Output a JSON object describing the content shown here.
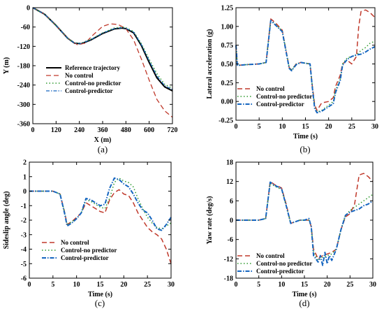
{
  "chart_data": [
    {
      "panel_label": "(a)",
      "type": "line",
      "xlabel": "X (m)",
      "ylabel": "Y (m)",
      "xlim": [
        0,
        720
      ],
      "ylim": [
        -360,
        0
      ],
      "xticks": [
        0,
        120,
        240,
        360,
        480,
        600,
        720
      ],
      "yticks": [
        0,
        -60,
        -120,
        -180,
        -240,
        -300,
        -360
      ],
      "legend_position": "lower-left",
      "series": [
        {
          "name": "Reference trajectory",
          "color": "#000000",
          "dash": "solid",
          "width": 2,
          "x": [
            0,
            60,
            120,
            180,
            215,
            250,
            300,
            360,
            420,
            460,
            480,
            520,
            560,
            600,
            640,
            680,
            720
          ],
          "y": [
            0,
            -20,
            -55,
            -95,
            -110,
            -112,
            -100,
            -80,
            -66,
            -63,
            -65,
            -78,
            -118,
            -170,
            -218,
            -246,
            -258
          ]
        },
        {
          "name": "No control",
          "color": "#c0392b",
          "dash": "7,4",
          "width": 1.3,
          "x": [
            0,
            60,
            120,
            180,
            230,
            270,
            310,
            360,
            400,
            440,
            480,
            520,
            560,
            600,
            640,
            680,
            720
          ],
          "y": [
            0,
            -20,
            -55,
            -95,
            -115,
            -110,
            -85,
            -58,
            -50,
            -52,
            -65,
            -100,
            -160,
            -225,
            -285,
            -320,
            -340
          ]
        },
        {
          "name": "Control-no predictor",
          "color": "#2e9a2e",
          "dash": "1.5,3",
          "width": 1.5,
          "x": [
            0,
            60,
            120,
            180,
            215,
            250,
            300,
            360,
            420,
            460,
            480,
            520,
            560,
            600,
            640,
            680,
            720
          ],
          "y": [
            0,
            -20,
            -55,
            -95,
            -109,
            -110,
            -98,
            -78,
            -63,
            -60,
            -62,
            -74,
            -112,
            -160,
            -205,
            -238,
            -250
          ]
        },
        {
          "name": "Control-predictor",
          "color": "#1565c0",
          "dash": "5,2,1.5,2",
          "width": 1.2,
          "x": [
            0,
            60,
            120,
            180,
            215,
            250,
            300,
            360,
            420,
            460,
            480,
            520,
            560,
            600,
            640,
            680,
            720
          ],
          "y": [
            0,
            -20,
            -55,
            -95,
            -110,
            -111,
            -99,
            -79,
            -65,
            -62,
            -64,
            -76,
            -115,
            -165,
            -212,
            -242,
            -254
          ]
        }
      ]
    },
    {
      "panel_label": "(b)",
      "type": "line",
      "xlabel": "Time (s)",
      "ylabel": "Lateral acceleration (g)",
      "xlim": [
        0,
        30
      ],
      "ylim": [
        -0.25,
        1.25
      ],
      "xticks": [
        0,
        5,
        10,
        15,
        20,
        25,
        30
      ],
      "yticks": [
        -0.25,
        0.0,
        0.25,
        0.5,
        0.75,
        1.0,
        1.25
      ],
      "ytick_labels": [
        "-0.25",
        "0.00",
        "0.25",
        "0.50",
        "0.75",
        "1.00",
        "1.25"
      ],
      "legend_position": "lower-left",
      "series": [
        {
          "name": "No control",
          "color": "#c0392b",
          "dash": "7,4",
          "width": 1.5,
          "x": [
            0,
            0.3,
            2,
            5,
            6.5,
            7.5,
            8.5,
            10,
            11.5,
            12,
            13,
            14,
            16,
            16.5,
            17,
            17.5,
            18.5,
            20,
            21,
            21.5,
            22.5,
            23,
            24,
            25,
            26,
            26.5,
            27,
            28,
            29,
            30
          ],
          "y": [
            0.75,
            0.48,
            0.49,
            0.5,
            0.52,
            1.1,
            1.05,
            0.95,
            0.45,
            0.42,
            0.5,
            0.52,
            0.5,
            0.2,
            -0.05,
            -0.12,
            -0.02,
            0.0,
            0.05,
            0.2,
            0.35,
            0.5,
            0.55,
            0.5,
            0.6,
            1.0,
            1.2,
            1.22,
            1.18,
            1.12
          ]
        },
        {
          "name": "Control-no predictor",
          "color": "#2e9a2e",
          "dash": "1.5,3",
          "width": 1.5,
          "x": [
            0,
            0.3,
            2,
            5,
            6.5,
            7.5,
            8.5,
            10,
            11.5,
            12,
            13,
            14,
            16,
            16.5,
            17,
            17.5,
            18.5,
            20,
            21,
            21.5,
            22.5,
            23,
            24,
            25,
            26,
            27,
            28,
            29,
            30
          ],
          "y": [
            0.75,
            0.48,
            0.49,
            0.5,
            0.52,
            1.08,
            1.03,
            0.94,
            0.45,
            0.42,
            0.5,
            0.52,
            0.5,
            0.2,
            -0.08,
            -0.14,
            -0.12,
            -0.05,
            0.0,
            0.15,
            0.3,
            0.5,
            0.58,
            0.6,
            0.62,
            0.68,
            0.72,
            0.78,
            0.8
          ]
        },
        {
          "name": "Control-predictor",
          "color": "#1565c0",
          "dash": "6,2,1.5,2",
          "width": 2,
          "x": [
            0,
            0.3,
            2,
            5,
            6.5,
            7.5,
            8.5,
            10,
            11.5,
            12,
            13,
            14,
            16,
            16.5,
            17,
            17.5,
            18.5,
            20,
            21,
            21.5,
            22.5,
            23,
            24,
            25,
            26,
            27,
            28,
            29,
            30
          ],
          "y": [
            0.75,
            0.48,
            0.49,
            0.5,
            0.52,
            1.08,
            1.02,
            0.93,
            0.44,
            0.41,
            0.49,
            0.52,
            0.5,
            0.18,
            -0.1,
            -0.15,
            -0.13,
            -0.07,
            -0.03,
            0.12,
            0.28,
            0.48,
            0.56,
            0.6,
            0.62,
            0.63,
            0.66,
            0.7,
            0.73
          ]
        }
      ]
    },
    {
      "panel_label": "(c)",
      "type": "line",
      "xlabel": "Time (s)",
      "ylabel": "Sideslip angle (deg)",
      "xlim": [
        0,
        30
      ],
      "ylim": [
        -6,
        2
      ],
      "xticks": [
        0,
        5,
        10,
        15,
        20,
        25,
        30
      ],
      "yticks": [
        2,
        1,
        0,
        -1,
        -2,
        -3,
        -4,
        -5,
        -6
      ],
      "legend_position": "lower-left",
      "series": [
        {
          "name": "No control",
          "color": "#c0392b",
          "dash": "7,4",
          "width": 1.5,
          "x": [
            0,
            5,
            6.5,
            7.5,
            8,
            9,
            10,
            11,
            12,
            13,
            14,
            15,
            16,
            17,
            18,
            19,
            20,
            21,
            22,
            23,
            24,
            25,
            26,
            27,
            28,
            29,
            30
          ],
          "y": [
            0,
            0,
            -0.2,
            -1.5,
            -2.3,
            -2.1,
            -1.8,
            -1.5,
            -0.8,
            -1.0,
            -1.2,
            -1.4,
            -1.5,
            -0.6,
            -0.1,
            0.1,
            -0.2,
            -0.3,
            -0.8,
            -1.5,
            -2.0,
            -2.5,
            -2.8,
            -3.0,
            -3.3,
            -4.0,
            -5.0
          ]
        },
        {
          "name": "Control-no predictor",
          "color": "#2e9a2e",
          "dash": "1.5,3",
          "width": 1.5,
          "x": [
            0,
            5,
            6.5,
            7.5,
            8,
            9,
            10,
            11,
            12,
            13,
            14,
            15,
            16,
            17,
            18,
            19,
            20,
            21,
            22,
            23,
            24,
            25,
            26,
            27,
            28,
            29,
            30
          ],
          "y": [
            0,
            0,
            -0.2,
            -1.5,
            -2.3,
            -2.1,
            -1.9,
            -1.5,
            -0.6,
            -0.7,
            -0.9,
            -1.1,
            -1.2,
            -0.5,
            0.6,
            0.9,
            0.7,
            0.6,
            0.3,
            -0.5,
            -1.2,
            -1.8,
            -2.2,
            -2.5,
            -2.6,
            -2.4,
            -2.2
          ]
        },
        {
          "name": "Control-predictor",
          "color": "#1565c0",
          "dash": "6,2,1.5,2",
          "width": 2,
          "x": [
            0,
            5,
            6.5,
            7.5,
            8,
            9,
            10,
            11,
            12,
            13,
            14,
            15,
            16,
            17,
            18,
            19,
            20,
            21,
            22,
            23,
            24,
            25,
            26,
            27,
            28,
            29,
            30
          ],
          "y": [
            0,
            0,
            -0.2,
            -1.6,
            -2.4,
            -2.2,
            -1.9,
            -1.5,
            -0.5,
            -0.6,
            -0.8,
            -1.0,
            -0.9,
            0.2,
            0.9,
            0.8,
            0.5,
            0.3,
            -0.2,
            -0.8,
            -1.3,
            -1.5,
            -2.0,
            -2.6,
            -2.7,
            -2.3,
            -1.8
          ]
        }
      ]
    },
    {
      "panel_label": "(d)",
      "type": "line",
      "xlabel": "Time (s)",
      "ylabel": "Yaw rate (deg/s)",
      "xlim": [
        0,
        30
      ],
      "ylim": [
        -18,
        18
      ],
      "xticks": [
        0,
        5,
        10,
        15,
        20,
        25,
        30
      ],
      "yticks": [
        18,
        12,
        6,
        0,
        -6,
        -12,
        -18
      ],
      "legend_position": "lower-left",
      "series": [
        {
          "name": "No control",
          "color": "#c0392b",
          "dash": "7,4",
          "width": 1.5,
          "x": [
            0,
            5,
            6.5,
            7.5,
            8.5,
            10,
            11,
            12,
            13,
            14,
            15,
            16,
            16.5,
            17,
            18,
            19,
            20,
            21,
            22,
            23,
            24,
            25,
            26,
            27,
            28,
            29,
            30
          ],
          "y": [
            0,
            0,
            0.5,
            12,
            11,
            10,
            5,
            -1,
            -0.5,
            0,
            0,
            0,
            -2,
            -9,
            -12,
            -11,
            -10.5,
            -10,
            -9,
            -3,
            1,
            2,
            5,
            14,
            14.5,
            13.5,
            12
          ]
        },
        {
          "name": "Control-no predictor",
          "color": "#2e9a2e",
          "dash": "1.5,3",
          "width": 1.5,
          "x": [
            0,
            5,
            6.5,
            7.5,
            8.5,
            10,
            11,
            12,
            13,
            14,
            15,
            16,
            16.5,
            17,
            18,
            19,
            20,
            21,
            22,
            23,
            24,
            25,
            26,
            27,
            28,
            29,
            30
          ],
          "y": [
            0,
            0,
            0.5,
            11.5,
            10.5,
            9.5,
            4.5,
            -1,
            -0.5,
            0,
            0,
            0,
            -2,
            -10,
            -12.5,
            -11.5,
            -11,
            -10.5,
            -9,
            -3,
            1.5,
            3,
            4,
            5,
            6,
            7,
            8
          ]
        },
        {
          "name": "Control-predictor",
          "color": "#1565c0",
          "dash": "6,2,1.5,2",
          "width": 2,
          "x": [
            0,
            5,
            6.5,
            7.5,
            8.5,
            10,
            11,
            12,
            13,
            14,
            15,
            16,
            16.5,
            17,
            18,
            18.5,
            19,
            19.5,
            20,
            20.5,
            21,
            22,
            23,
            24,
            25,
            26,
            27,
            28,
            29,
            30
          ],
          "y": [
            0,
            0,
            0.5,
            11.8,
            10.8,
            9.8,
            4.5,
            -1,
            -0.5,
            0,
            0,
            0.5,
            -2,
            -11,
            -13,
            -11,
            -14,
            -10,
            -13.5,
            -11,
            -12.5,
            -9,
            -3,
            1.5,
            2.5,
            3,
            3.5,
            4.5,
            5,
            6
          ]
        }
      ]
    }
  ]
}
